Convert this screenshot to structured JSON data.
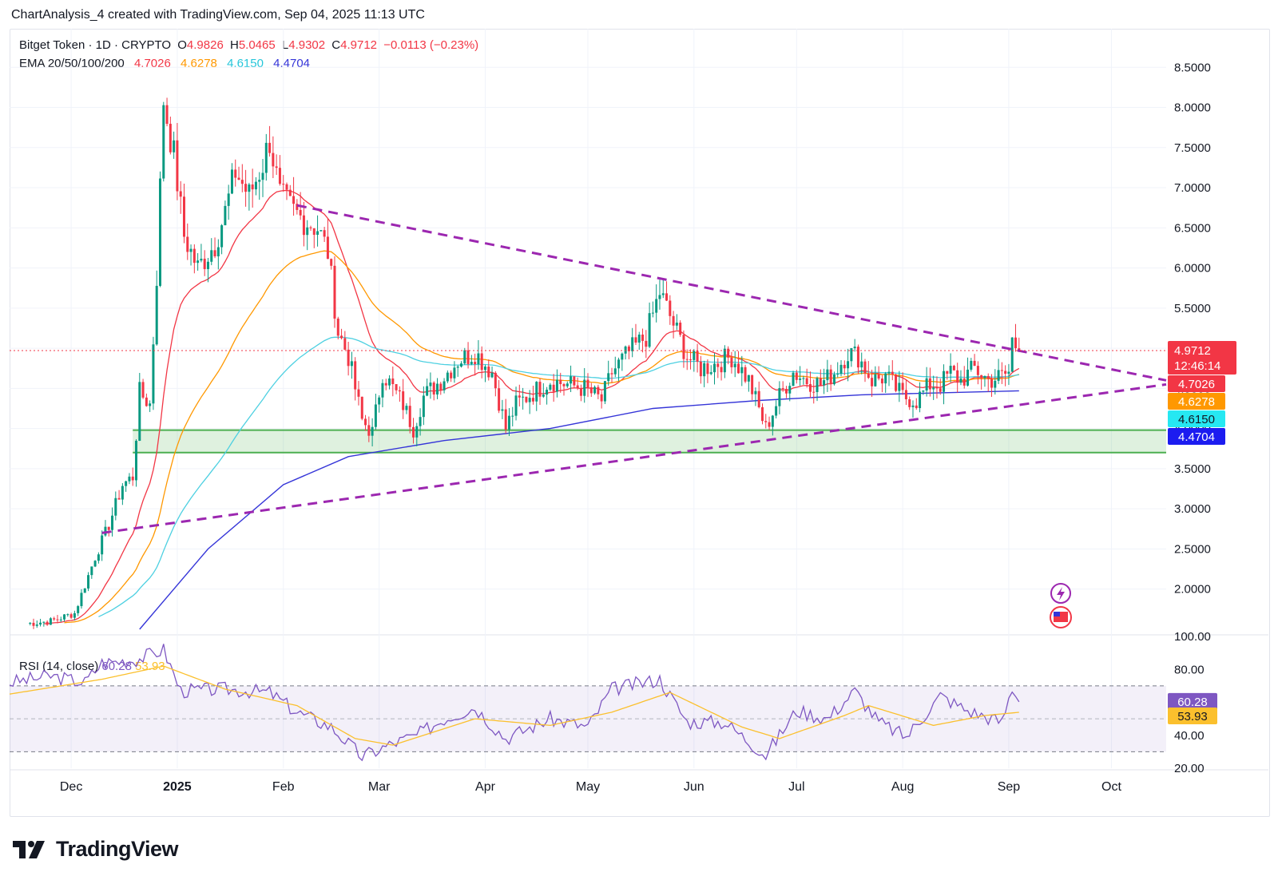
{
  "header": {
    "caption": "ChartAnalysis_4 created with TradingView.com, Sep 04, 2025 11:13 UTC"
  },
  "legend": {
    "symbol": "Bitget Token · 1D · CRYPTO",
    "o_label": "O",
    "o_value": "4.9826",
    "h_label": "H",
    "h_value": "5.0465",
    "l_label": "L",
    "l_value": "4.9302",
    "c_label": "C",
    "c_value": "4.9712",
    "change": "−0.0113 (−0.23%)",
    "ema_label": "EMA 20/50/100/200",
    "ema20": "4.7026",
    "ema50": "4.6278",
    "ema100": "4.6150",
    "ema200": "4.4704"
  },
  "rsi_legend": {
    "label": "RSI (14, close)",
    "rsi": "60.28",
    "ma": "53.93"
  },
  "brand": {
    "name": "TradingView",
    "icon": "tradingview-logo-icon"
  },
  "colors": {
    "up": "#089981",
    "down": "#f23645",
    "ema20": "#f23645",
    "ema50": "#ff9800",
    "ema100": "#4dd0e1",
    "ema200": "#3535d8",
    "trend": "#9c27b0",
    "zone": "#4caf50",
    "rsi": "#7e57c2",
    "rsi_ma": "#fbc02d"
  },
  "chart_data": [
    {
      "type": "candlestick",
      "title": "Bitget Token · 1D · CRYPTO",
      "x_axis_labels": [
        "Dec",
        "2025",
        "Feb",
        "Mar",
        "Apr",
        "May",
        "Jun",
        "Jul",
        "Aug",
        "Sep",
        "Oct"
      ],
      "x_range": [
        "2024-11-13",
        "2025-10-17"
      ],
      "y_ticks": [
        "2.0000",
        "2.5000",
        "3.0000",
        "3.5000",
        "4.0000",
        "4.5000",
        "5.0000",
        "5.5000",
        "6.0000",
        "6.5000",
        "7.0000",
        "7.5000",
        "8.0000",
        "8.5000"
      ],
      "ylim": [
        1.46,
        8.98
      ],
      "last_price": "4.9712",
      "countdown": "12:46:14",
      "ema_labels": [
        "4.7026",
        "4.6278",
        "4.6150",
        "4.4704"
      ],
      "close_series": [
        [
          "2024-11-18",
          1.57
        ],
        [
          "2024-11-25",
          1.6
        ],
        [
          "2024-12-02",
          1.7
        ],
        [
          "2024-12-08",
          2.4
        ],
        [
          "2024-12-12",
          2.8
        ],
        [
          "2024-12-16",
          3.3
        ],
        [
          "2024-12-19",
          3.4
        ],
        [
          "2024-12-21",
          4.45
        ],
        [
          "2024-12-24",
          4.3
        ],
        [
          "2024-12-26",
          5.9
        ],
        [
          "2024-12-28",
          8.1
        ],
        [
          "2024-12-31",
          7.4
        ],
        [
          "2025-01-03",
          6.4
        ],
        [
          "2025-01-07",
          6.0
        ],
        [
          "2025-01-12",
          6.3
        ],
        [
          "2025-01-15",
          6.7
        ],
        [
          "2025-01-18",
          7.2
        ],
        [
          "2025-01-22",
          6.9
        ],
        [
          "2025-01-26",
          7.3
        ],
        [
          "2025-01-28",
          7.6
        ],
        [
          "2025-01-31",
          6.9
        ],
        [
          "2025-02-04",
          6.7
        ],
        [
          "2025-02-07",
          6.6
        ],
        [
          "2025-02-11",
          6.5
        ],
        [
          "2025-02-14",
          6.2
        ],
        [
          "2025-02-17",
          5.2
        ],
        [
          "2025-02-20",
          4.9
        ],
        [
          "2025-02-22",
          4.5
        ],
        [
          "2025-02-24",
          4.1
        ],
        [
          "2025-02-27",
          3.95
        ],
        [
          "2025-03-02",
          4.7
        ],
        [
          "2025-03-05",
          4.5
        ],
        [
          "2025-03-08",
          4.3
        ],
        [
          "2025-03-11",
          4.0
        ],
        [
          "2025-03-14",
          4.4
        ],
        [
          "2025-03-19",
          4.6
        ],
        [
          "2025-03-24",
          4.85
        ],
        [
          "2025-03-29",
          4.95
        ],
        [
          "2025-04-03",
          4.7
        ],
        [
          "2025-04-07",
          4.0
        ],
        [
          "2025-04-10",
          4.3
        ],
        [
          "2025-04-15",
          4.45
        ],
        [
          "2025-04-20",
          4.6
        ],
        [
          "2025-04-25",
          4.55
        ],
        [
          "2025-04-30",
          4.5
        ],
        [
          "2025-05-05",
          4.35
        ],
        [
          "2025-05-08",
          4.7
        ],
        [
          "2025-05-13",
          4.95
        ],
        [
          "2025-05-18",
          5.15
        ],
        [
          "2025-05-22",
          5.7
        ],
        [
          "2025-05-26",
          5.3
        ],
        [
          "2025-05-30",
          4.9
        ],
        [
          "2025-06-03",
          4.75
        ],
        [
          "2025-06-07",
          4.8
        ],
        [
          "2025-06-12",
          4.9
        ],
        [
          "2025-06-17",
          4.6
        ],
        [
          "2025-06-22",
          4.0
        ],
        [
          "2025-06-26",
          4.4
        ],
        [
          "2025-06-30",
          4.7
        ],
        [
          "2025-07-04",
          4.6
        ],
        [
          "2025-07-08",
          4.55
        ],
        [
          "2025-07-12",
          4.7
        ],
        [
          "2025-07-16",
          4.95
        ],
        [
          "2025-07-19",
          4.9
        ],
        [
          "2025-07-23",
          4.6
        ],
        [
          "2025-07-27",
          4.65
        ],
        [
          "2025-08-01",
          4.4
        ],
        [
          "2025-08-05",
          4.35
        ],
        [
          "2025-08-09",
          4.55
        ],
        [
          "2025-08-12",
          4.55
        ],
        [
          "2025-08-15",
          4.7
        ],
        [
          "2025-08-18",
          4.6
        ],
        [
          "2025-08-22",
          4.75
        ],
        [
          "2025-08-26",
          4.6
        ],
        [
          "2025-08-30",
          4.65
        ],
        [
          "2025-09-01",
          4.7
        ],
        [
          "2025-09-02",
          5.1
        ],
        [
          "2025-09-04",
          4.97
        ]
      ],
      "ema200_series": [
        [
          "2024-12-21",
          1.5
        ],
        [
          "2025-01-10",
          2.5
        ],
        [
          "2025-02-01",
          3.3
        ],
        [
          "2025-02-20",
          3.65
        ],
        [
          "2025-03-20",
          3.85
        ],
        [
          "2025-04-20",
          4.0
        ],
        [
          "2025-05-20",
          4.25
        ],
        [
          "2025-06-20",
          4.35
        ],
        [
          "2025-07-20",
          4.42
        ],
        [
          "2025-09-04",
          4.4704
        ]
      ],
      "annotations": [
        {
          "type": "descending trendline",
          "from": [
            "2025-02-05",
            6.78
          ],
          "to": [
            "2025-10-17",
            4.6
          ]
        },
        {
          "type": "ascending trendline",
          "from": [
            "2024-12-10",
            2.7
          ],
          "to": [
            "2025-10-17",
            4.55
          ]
        },
        {
          "type": "support zone",
          "from_date": "2024-12-19",
          "y": [
            3.7,
            3.98
          ]
        }
      ]
    },
    {
      "type": "line",
      "title": "RSI (14, close)",
      "y_ticks": [
        "20.00",
        "40.00",
        "60.00",
        "80.00",
        "100.00"
      ],
      "ylim": [
        20,
        100
      ],
      "bands": [
        30,
        50,
        70
      ],
      "series": [
        {
          "name": "RSI",
          "last": 60.28,
          "values": [
            [
              "2024-11-13",
              72
            ],
            [
              "2024-11-25",
              76
            ],
            [
              "2024-12-05",
              72
            ],
            [
              "2024-12-10",
              84
            ],
            [
              "2024-12-20",
              86
            ],
            [
              "2024-12-28",
              92
            ],
            [
              "2025-01-02",
              67
            ],
            [
              "2025-01-15",
              68
            ],
            [
              "2025-01-28",
              66
            ],
            [
              "2025-02-05",
              54
            ],
            [
              "2025-02-15",
              45
            ],
            [
              "2025-02-24",
              27
            ],
            [
              "2025-03-05",
              35
            ],
            [
              "2025-03-12",
              40
            ],
            [
              "2025-03-20",
              50
            ],
            [
              "2025-03-29",
              57
            ],
            [
              "2025-04-07",
              38
            ],
            [
              "2025-04-20",
              50
            ],
            [
              "2025-05-01",
              45
            ],
            [
              "2025-05-08",
              68
            ],
            [
              "2025-05-22",
              74
            ],
            [
              "2025-05-30",
              48
            ],
            [
              "2025-06-10",
              48
            ],
            [
              "2025-06-22",
              28
            ],
            [
              "2025-07-01",
              55
            ],
            [
              "2025-07-10",
              50
            ],
            [
              "2025-07-18",
              67
            ],
            [
              "2025-07-25",
              48
            ],
            [
              "2025-08-02",
              39
            ],
            [
              "2025-08-12",
              64
            ],
            [
              "2025-08-20",
              55
            ],
            [
              "2025-08-30",
              48
            ],
            [
              "2025-09-02",
              69
            ],
            [
              "2025-09-04",
              60.28
            ]
          ]
        },
        {
          "name": "RSI-based MA",
          "last": 53.93,
          "values": [
            [
              "2024-11-13",
              65
            ],
            [
              "2024-12-10",
              74
            ],
            [
              "2024-12-28",
              82
            ],
            [
              "2025-01-15",
              68
            ],
            [
              "2025-02-05",
              58
            ],
            [
              "2025-02-22",
              38
            ],
            [
              "2025-03-05",
              34
            ],
            [
              "2025-03-29",
              50
            ],
            [
              "2025-04-20",
              46
            ],
            [
              "2025-05-08",
              54
            ],
            [
              "2025-05-25",
              66
            ],
            [
              "2025-06-15",
              45
            ],
            [
              "2025-06-26",
              38
            ],
            [
              "2025-07-15",
              52
            ],
            [
              "2025-07-22",
              58
            ],
            [
              "2025-08-10",
              46
            ],
            [
              "2025-08-25",
              52
            ],
            [
              "2025-09-04",
              53.93
            ]
          ]
        }
      ]
    }
  ]
}
